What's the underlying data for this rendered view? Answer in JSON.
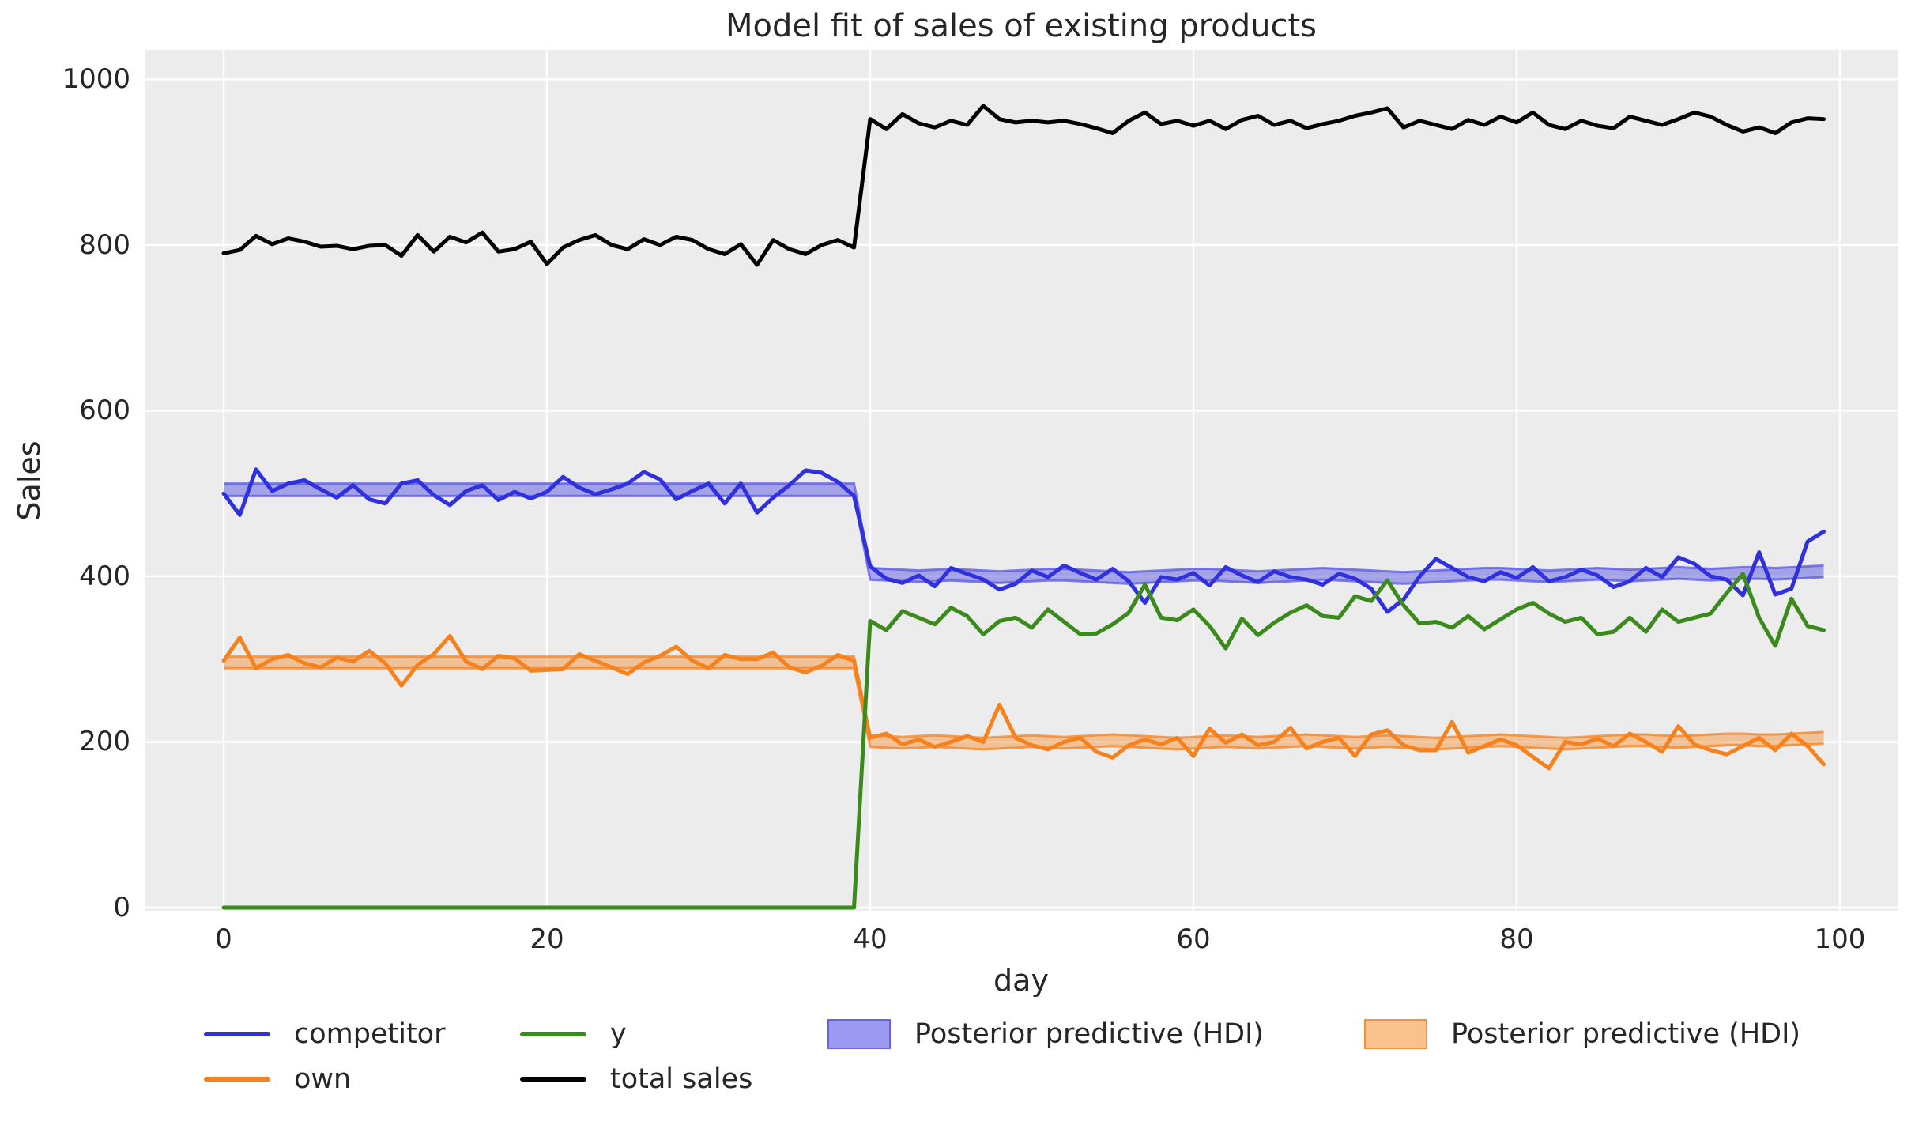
{
  "figure": {
    "title": "Model fit of sales of existing products",
    "xlabel": "day",
    "ylabel": "Sales"
  },
  "chart_data": {
    "type": "line",
    "title": "Model fit of sales of existing products",
    "xlabel": "day",
    "ylabel": "Sales",
    "x_ticks": [
      0,
      20,
      40,
      60,
      80,
      100
    ],
    "y_ticks": [
      0,
      200,
      400,
      600,
      800,
      1000
    ],
    "xlim": [
      -5,
      104
    ],
    "ylim": [
      -4,
      1036
    ],
    "grid": true,
    "background_color": "#ececec",
    "grid_color": "#ffffff",
    "days_start": 0,
    "series": [
      {
        "name": "competitor",
        "color": "#3031dd",
        "values": [
          500,
          474,
          529,
          503,
          512,
          516,
          505,
          495,
          510,
          493,
          488,
          512,
          516,
          498,
          486,
          503,
          510,
          492,
          502,
          494,
          502,
          520,
          507,
          499,
          505,
          512,
          526,
          517,
          493,
          503,
          512,
          488,
          512,
          477,
          495,
          510,
          528,
          525,
          514,
          497,
          412,
          397,
          392,
          401,
          388,
          410,
          403,
          396,
          384,
          391,
          407,
          399,
          413,
          404,
          396,
          409,
          394,
          368,
          399,
          396,
          404,
          389,
          411,
          401,
          393,
          406,
          399,
          396,
          390,
          403,
          397,
          385,
          357,
          372,
          400,
          421,
          410,
          399,
          394,
          405,
          398,
          411,
          394,
          399,
          408,
          401,
          387,
          394,
          410,
          399,
          423,
          415,
          400,
          396,
          377,
          429,
          378,
          385,
          442,
          454
        ]
      },
      {
        "name": "own",
        "color": "#f6821e",
        "values": [
          298,
          326,
          289,
          300,
          305,
          295,
          290,
          302,
          297,
          310,
          295,
          268,
          293,
          306,
          328,
          297,
          288,
          304,
          301,
          286,
          287,
          288,
          306,
          298,
          290,
          282,
          296,
          304,
          315,
          298,
          289,
          305,
          300,
          300,
          308,
          290,
          284,
          292,
          305,
          298,
          205,
          210,
          197,
          203,
          194,
          200,
          207,
          200,
          245,
          205,
          196,
          191,
          200,
          205,
          188,
          181,
          196,
          203,
          197,
          205,
          183,
          216,
          199,
          209,
          196,
          200,
          217,
          192,
          200,
          205,
          183,
          209,
          214,
          196,
          190,
          190,
          224,
          187,
          195,
          203,
          196,
          182,
          168,
          200,
          197,
          204,
          195,
          210,
          200,
          188,
          219,
          197,
          190,
          185,
          195,
          205,
          190,
          210,
          195,
          173
        ]
      },
      {
        "name": "y",
        "color": "#3a8a1c",
        "values": [
          0,
          0,
          0,
          0,
          0,
          0,
          0,
          0,
          0,
          0,
          0,
          0,
          0,
          0,
          0,
          0,
          0,
          0,
          0,
          0,
          0,
          0,
          0,
          0,
          0,
          0,
          0,
          0,
          0,
          0,
          0,
          0,
          0,
          0,
          0,
          0,
          0,
          0,
          0,
          0,
          346,
          335,
          358,
          350,
          342,
          362,
          352,
          330,
          346,
          350,
          338,
          360,
          345,
          330,
          331,
          342,
          356,
          390,
          350,
          347,
          360,
          340,
          313,
          349,
          329,
          344,
          356,
          365,
          352,
          350,
          376,
          370,
          395,
          365,
          343,
          345,
          338,
          352,
          336,
          348,
          360,
          368,
          355,
          345,
          350,
          330,
          333,
          350,
          333,
          360,
          345,
          350,
          355,
          380,
          403,
          350,
          316,
          373,
          340,
          335
        ]
      },
      {
        "name": "total sales",
        "color": "#000000",
        "values": [
          790,
          794,
          811,
          801,
          808,
          804,
          798,
          799,
          795,
          799,
          800,
          787,
          812,
          792,
          810,
          803,
          815,
          792,
          795,
          804,
          777,
          797,
          806,
          812,
          800,
          795,
          807,
          800,
          810,
          806,
          795,
          789,
          801,
          776,
          806,
          795,
          789,
          800,
          806,
          797,
          952,
          940,
          958,
          947,
          942,
          950,
          945,
          968,
          952,
          948,
          950,
          948,
          950,
          946,
          941,
          935,
          950,
          960,
          946,
          950,
          944,
          950,
          940,
          951,
          956,
          945,
          950,
          941,
          946,
          950,
          956,
          960,
          965,
          942,
          950,
          945,
          940,
          951,
          945,
          955,
          948,
          960,
          945,
          940,
          950,
          944,
          941,
          955,
          950,
          945,
          952,
          960,
          955,
          945,
          937,
          942,
          935,
          948,
          953,
          952
        ]
      }
    ],
    "hdi_bands": [
      {
        "name": "Posterior predictive (HDI)",
        "series": "competitor",
        "color": "#5a57e2",
        "fill_opacity": 0.5,
        "pre": {
          "days": [
            0,
            39
          ],
          "lo": 497,
          "hi": 512
        },
        "post": {
          "start_day": 40,
          "halfwidth": 7,
          "center": [
            403,
            402,
            401,
            400,
            401,
            402,
            401,
            400,
            399,
            400,
            401,
            402,
            402,
            401,
            400,
            399,
            398,
            399,
            400,
            401,
            402,
            402,
            401,
            400,
            399,
            400,
            401,
            402,
            403,
            402,
            401,
            400,
            399,
            398,
            399,
            400,
            401,
            402,
            403,
            403,
            402,
            401,
            400,
            401,
            402,
            403,
            402,
            401,
            402,
            403,
            404,
            403,
            402,
            403,
            404,
            404,
            403,
            404,
            405,
            406
          ]
        }
      },
      {
        "name": "Posterior predictive (HDI)",
        "series": "own",
        "color": "#f6821e",
        "fill_opacity": 0.42,
        "pre": {
          "days": [
            0,
            39
          ],
          "lo": 289,
          "hi": 303
        },
        "post": {
          "start_day": 40,
          "halfwidth": 7,
          "center": [
            201,
            200,
            199,
            200,
            201,
            200,
            199,
            198,
            199,
            200,
            201,
            200,
            199,
            200,
            201,
            202,
            201,
            200,
            199,
            198,
            199,
            200,
            201,
            200,
            199,
            200,
            201,
            202,
            201,
            200,
            199,
            200,
            201,
            200,
            199,
            198,
            199,
            200,
            201,
            202,
            201,
            200,
            199,
            198,
            199,
            200,
            201,
            202,
            202,
            201,
            200,
            201,
            202,
            203,
            203,
            202,
            202,
            203,
            204,
            205
          ]
        }
      }
    ],
    "legend": {
      "items": [
        {
          "label": "competitor",
          "swatch": "line",
          "color": "#3031dd"
        },
        {
          "label": "own",
          "swatch": "line",
          "color": "#f6821e"
        },
        {
          "label": "y",
          "swatch": "line",
          "color": "#3a8a1c"
        },
        {
          "label": "total sales",
          "swatch": "line",
          "color": "#000000"
        },
        {
          "label": "Posterior predictive (HDI)",
          "swatch": "patch",
          "fill": "#9b98ef",
          "border": "#6663e6"
        },
        {
          "label": "Posterior predictive (HDI)",
          "swatch": "patch",
          "fill": "#f9c28c",
          "border": "#f0933c"
        }
      ]
    }
  }
}
